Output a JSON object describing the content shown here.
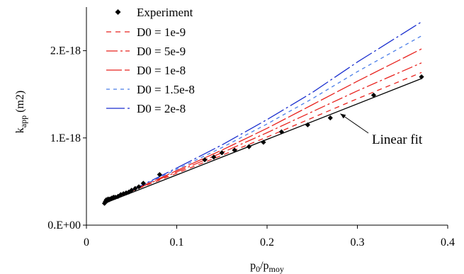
{
  "chart_data": {
    "type": "line",
    "title": "",
    "xlabel": "p0/pmoy",
    "xlabel_parts": [
      {
        "text": "p",
        "sub": false
      },
      {
        "text": "0",
        "sub": true
      },
      {
        "text": "/p",
        "sub": false
      },
      {
        "text": "moy",
        "sub": true
      }
    ],
    "ylabel": "kapp (m2)",
    "ylabel_parts": [
      {
        "text": "k",
        "sub": false
      },
      {
        "text": "app",
        "sub": true
      },
      {
        "text": " (m2)",
        "sub": false
      }
    ],
    "xlim": [
      0,
      0.4
    ],
    "ylim": [
      0,
      2.5e-18
    ],
    "x_ticks": [
      {
        "value": 0,
        "label": "0"
      },
      {
        "value": 0.1,
        "label": "0.1"
      },
      {
        "value": 0.2,
        "label": "0.2"
      },
      {
        "value": 0.3,
        "label": "0.3"
      },
      {
        "value": 0.4,
        "label": "0.4"
      }
    ],
    "y_ticks": [
      {
        "value": 0,
        "label": "0.E+00"
      },
      {
        "value": 1e-18,
        "label": "1.E-18"
      },
      {
        "value": 2e-18,
        "label": "2.E-18"
      }
    ],
    "grid": false,
    "legend_position": "top-left",
    "experiment": {
      "name": "Experiment",
      "color": "#000000",
      "marker": "diamond",
      "x": [
        0.02,
        0.021,
        0.022,
        0.023,
        0.024,
        0.025,
        0.026,
        0.028,
        0.03,
        0.032,
        0.035,
        0.038,
        0.041,
        0.044,
        0.047,
        0.05,
        0.054,
        0.058,
        0.063,
        0.081,
        0.131,
        0.141,
        0.15,
        0.164,
        0.18,
        0.196,
        0.216,
        0.245,
        0.27,
        0.318,
        0.371
      ],
      "y": [
        2.5e-19,
        2.7e-19,
        2.9e-19,
        2.8e-19,
        3e-19,
        2.9e-19,
        3e-19,
        3.1e-19,
        3.2e-19,
        3.2e-19,
        3.3e-19,
        3.5e-19,
        3.6e-19,
        3.7e-19,
        3.8e-19,
        4e-19,
        4.2e-19,
        4.4e-19,
        4.8e-19,
        5.8e-19,
        7.5e-19,
        7.8e-19,
        8.3e-19,
        8.6e-19,
        9e-19,
        9.5e-19,
        1.07e-18,
        1.15e-18,
        1.23e-18,
        1.49e-18,
        1.7e-18
      ]
    },
    "linear_fit": {
      "color": "#000000",
      "x": [
        0.02,
        0.371
      ],
      "y": [
        2.5e-19,
        1.68e-18
      ]
    },
    "series": [
      {
        "name": "D0 = 1e-9",
        "color": "#e8231e",
        "dash": "7,6",
        "x": [
          0.02,
          0.06,
          0.1,
          0.15,
          0.2,
          0.25,
          0.3,
          0.371
        ],
        "y": [
          2.6e-19,
          4.3e-19,
          5.95e-19,
          8e-19,
          1.01e-18,
          1.23e-18,
          1.45e-18,
          1.75e-18
        ]
      },
      {
        "name": "D0 = 5e-9",
        "color": "#e8231e",
        "dash": "16,4,3,4",
        "x": [
          0.02,
          0.06,
          0.1,
          0.15,
          0.2,
          0.25,
          0.3,
          0.371
        ],
        "y": [
          2.6e-19,
          4.35e-19,
          6.1e-19,
          8.3e-19,
          1.06e-18,
          1.3e-18,
          1.54e-18,
          1.86e-18
        ]
      },
      {
        "name": "D0 = 1e-8",
        "color": "#e8231e",
        "dash": "22,4",
        "x": [
          0.02,
          0.06,
          0.1,
          0.15,
          0.2,
          0.25,
          0.3,
          0.371
        ],
        "y": [
          2.6e-19,
          4.4e-19,
          6.25e-19,
          8.6e-19,
          1.11e-18,
          1.38e-18,
          1.65e-18,
          2.02e-18
        ]
      },
      {
        "name": "D0 = 1.5e-8",
        "color": "#4b7ee8",
        "dash": "5,5",
        "x": [
          0.02,
          0.06,
          0.1,
          0.15,
          0.2,
          0.25,
          0.3,
          0.371
        ],
        "y": [
          2.6e-19,
          4.45e-19,
          6.4e-19,
          8.9e-19,
          1.16e-18,
          1.45e-18,
          1.76e-18,
          2.17e-18
        ]
      },
      {
        "name": "D0 = 2e-8",
        "color": "#1a2fcf",
        "dash": "26,4,3,4",
        "x": [
          0.02,
          0.06,
          0.1,
          0.15,
          0.2,
          0.25,
          0.3,
          0.371
        ],
        "y": [
          2.6e-19,
          4.5e-19,
          6.55e-19,
          9.2e-19,
          1.21e-18,
          1.52e-18,
          1.87e-18,
          2.33e-18
        ]
      }
    ],
    "annotation": {
      "text": "Linear fit",
      "target_x": 0.278,
      "target_y": 1.31e-18
    }
  }
}
